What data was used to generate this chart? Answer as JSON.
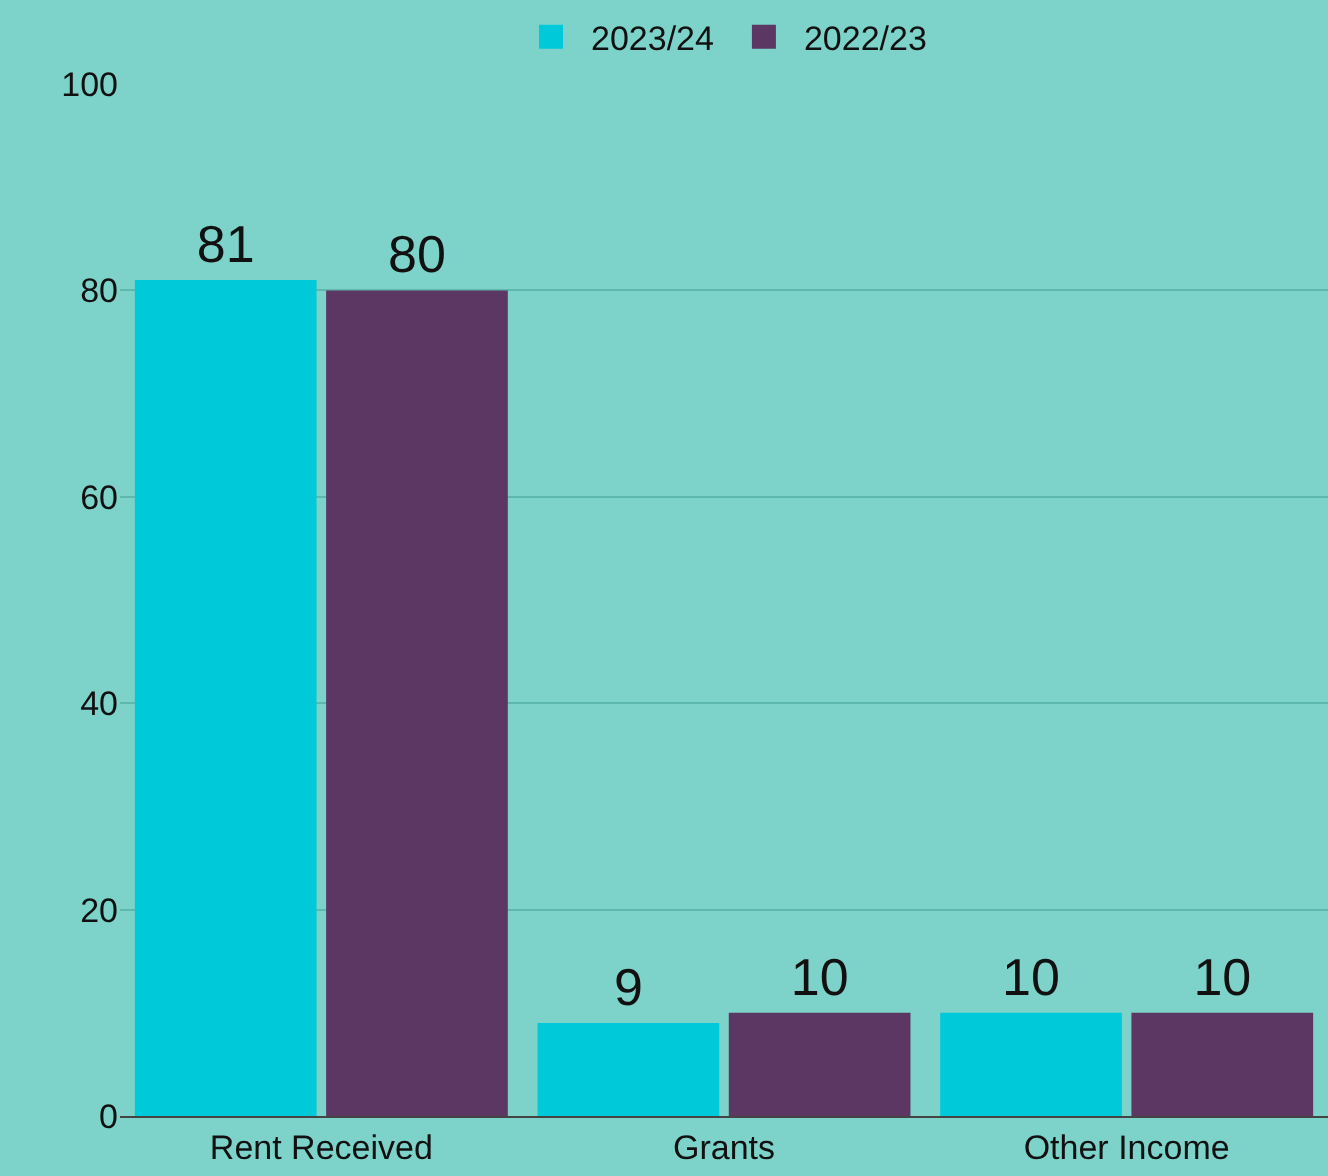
{
  "chart_data": {
    "type": "bar",
    "categories": [
      "Rent Received",
      "Grants",
      "Other Income"
    ],
    "series": [
      {
        "name": "2023/24",
        "color": "#00c9d9",
        "values": [
          81,
          9,
          10
        ]
      },
      {
        "name": "2022/23",
        "color": "#5c3764",
        "values": [
          80,
          10,
          10
        ]
      }
    ],
    "ylim": [
      0,
      100
    ],
    "yticks": [
      0,
      20,
      40,
      60,
      80,
      100
    ],
    "grid": "y",
    "legend": "top",
    "data_labels": true
  }
}
